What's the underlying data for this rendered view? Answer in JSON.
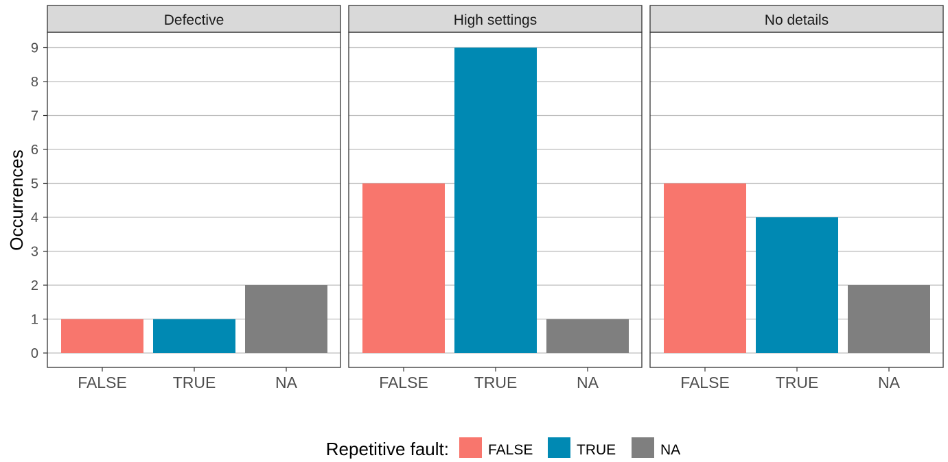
{
  "chart_data": {
    "type": "bar",
    "ylabel": "Occurrences",
    "ylim": [
      0,
      9
    ],
    "y_ticks": [
      "0",
      "1",
      "2",
      "3",
      "4",
      "5",
      "6",
      "7",
      "8",
      "9"
    ],
    "categories": [
      "FALSE",
      "TRUE",
      "NA"
    ],
    "category_colors": {
      "FALSE": "#F8766D",
      "TRUE": "#0089B3",
      "NA": "#7F7F7F"
    },
    "grid": true,
    "panels": [
      {
        "title": "Defective",
        "values": [
          1,
          1,
          2
        ]
      },
      {
        "title": "High settings",
        "values": [
          5,
          9,
          1
        ]
      },
      {
        "title": "No details",
        "values": [
          5,
          4,
          2
        ]
      }
    ],
    "legend": {
      "title": "Repetitive fault:",
      "placement": "bottom",
      "entries": [
        "FALSE",
        "TRUE",
        "NA"
      ]
    }
  }
}
